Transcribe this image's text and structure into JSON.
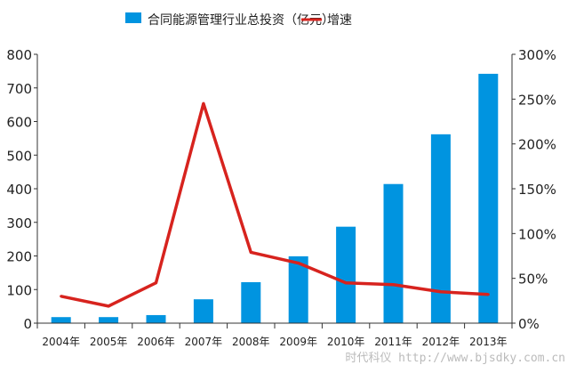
{
  "chart_data": {
    "type": "bar+line",
    "categories": [
      "2004年",
      "2005年",
      "2006年",
      "2007年",
      "2008年",
      "2009年",
      "2010年",
      "2011年",
      "2012年",
      "2013年"
    ],
    "series": [
      {
        "name": "合同能源管理行业总投资（亿元）",
        "type": "bar",
        "axis": "left",
        "color": "#0094e0",
        "values": [
          18,
          18,
          24,
          71,
          122,
          199,
          287,
          414,
          562,
          742
        ]
      },
      {
        "name": "增速",
        "type": "line",
        "axis": "right",
        "color": "#d7231e",
        "values": [
          30,
          19,
          45,
          245,
          79,
          67,
          45,
          43,
          35,
          32
        ]
      }
    ],
    "yleft": {
      "ylim": [
        0,
        800
      ],
      "ticks": [
        "0",
        "100",
        "200",
        "300",
        "400",
        "500",
        "600",
        "700",
        "800"
      ]
    },
    "yright": {
      "ylim": [
        0,
        300
      ],
      "ticks": [
        "0%",
        "50%",
        "100%",
        "150%",
        "200%",
        "250%",
        "300%"
      ]
    },
    "legend_placement": "top-center",
    "grid": false
  },
  "watermark": "时代科仪 http://www.bjsdky.com.cn"
}
